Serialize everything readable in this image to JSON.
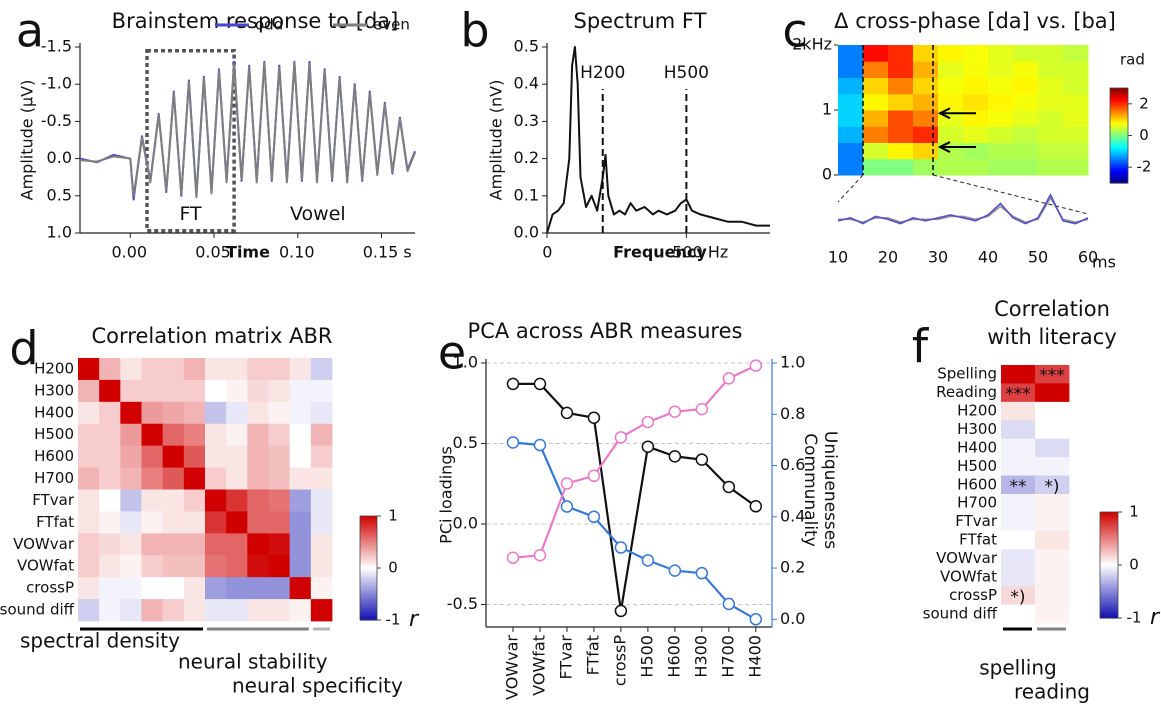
{
  "chart_data": [
    {
      "type": "line",
      "panel_label": "a",
      "title": "Brainstem response to [da]",
      "xlabel": "Time",
      "ylabel": "Amplitude (µV)",
      "x": [
        -0.03,
        -0.02,
        -0.01,
        0.0,
        0.002,
        0.007,
        0.012,
        0.017,
        0.0215,
        0.026,
        0.0305,
        0.035,
        0.0395,
        0.044,
        0.0485,
        0.053,
        0.0575,
        0.062,
        0.0665,
        0.071,
        0.0755,
        0.08,
        0.0845,
        0.089,
        0.0935,
        0.098,
        0.1025,
        0.107,
        0.1115,
        0.116,
        0.1205,
        0.125,
        0.1295,
        0.134,
        0.1385,
        0.143,
        0.1475,
        0.152,
        0.1565,
        0.161,
        0.1655,
        0.17
      ],
      "series": [
        {
          "name": "odd",
          "color": "#4646cc",
          "values": [
            0.0,
            0.05,
            -0.05,
            0.0,
            0.55,
            -0.3,
            0.3,
            -0.6,
            0.45,
            -0.9,
            0.5,
            -1.05,
            0.5,
            -1.1,
            0.45,
            -1.2,
            0.3,
            -1.3,
            0.3,
            -1.25,
            0.3,
            -1.3,
            0.3,
            -1.25,
            0.3,
            -1.3,
            0.3,
            -1.3,
            0.3,
            -1.2,
            0.3,
            -1.1,
            0.3,
            -1.0,
            0.3,
            -0.9,
            0.2,
            -0.75,
            0.2,
            -0.55,
            0.15,
            -0.1
          ]
        },
        {
          "name": "even",
          "color": "#7f7f7f",
          "values": [
            0.02,
            0.04,
            -0.03,
            0.0,
            0.5,
            -0.28,
            0.32,
            -0.58,
            0.43,
            -0.88,
            0.48,
            -1.03,
            0.52,
            -1.08,
            0.47,
            -1.18,
            0.32,
            -1.27,
            0.28,
            -1.23,
            0.32,
            -1.28,
            0.28,
            -1.22,
            0.32,
            -1.28,
            0.28,
            -1.27,
            0.32,
            -1.18,
            0.28,
            -1.08,
            0.32,
            -0.98,
            0.28,
            -0.88,
            0.22,
            -0.73,
            0.18,
            -0.53,
            0.17,
            -0.08
          ]
        }
      ],
      "xlim": [
        -0.03,
        0.17
      ],
      "ylim": [
        -1.5,
        1.0
      ],
      "y_inverted": true,
      "xticks": [
        {
          "value": 0,
          "label": "0.00"
        },
        0.05,
        {
          "value": 0.1,
          "label": "0.10"
        },
        {
          "value": 0.15,
          "label": "0.15 s"
        }
      ],
      "yticks": [
        -1.5,
        {
          "value": -1,
          "label": "-1.0"
        },
        -0.5,
        {
          "value": 0,
          "label": "0.0"
        },
        0.5,
        {
          "value": 1,
          "label": "1.0"
        }
      ],
      "legend": "upper right",
      "box": {
        "x0": 0.01,
        "x1": 0.062,
        "y0": -1.45,
        "y1": 0.97
      },
      "annotations": [
        {
          "text": "FT",
          "x": 0.036,
          "y": 0.75
        },
        {
          "text": "Vowel",
          "x": 0.112,
          "y": 0.75
        }
      ]
    },
    {
      "type": "line",
      "panel_label": "b",
      "title": "Spectrum FT",
      "xlabel": "Frequency",
      "ylabel": "Amplitude (nV)",
      "x": [
        0,
        20,
        40,
        60,
        80,
        90,
        100,
        110,
        120,
        140,
        160,
        180,
        200,
        210,
        220,
        240,
        260,
        280,
        300,
        320,
        350,
        380,
        400,
        430,
        460,
        480,
        500,
        520,
        550,
        600,
        650,
        700,
        750,
        800
      ],
      "series": [
        {
          "name": "spectrum",
          "color": "#111111",
          "values": [
            0,
            0.05,
            0.06,
            0.08,
            0.2,
            0.45,
            0.5,
            0.4,
            0.15,
            0.07,
            0.1,
            0.06,
            0.15,
            0.21,
            0.1,
            0.05,
            0.06,
            0.05,
            0.08,
            0.06,
            0.07,
            0.05,
            0.06,
            0.05,
            0.06,
            0.08,
            0.09,
            0.06,
            0.05,
            0.04,
            0.03,
            0.03,
            0.02,
            0.02
          ]
        }
      ],
      "xlim": [
        0,
        800
      ],
      "ylim": [
        0,
        0.5
      ],
      "xticks": [
        0,
        {
          "value": 500,
          "label": "500 Hz"
        }
      ],
      "yticks": [
        {
          "value": 0,
          "label": "0.0"
        },
        0.1,
        0.2,
        0.3,
        0.4,
        0.5
      ],
      "vlines": [
        {
          "x": 200,
          "label": "H200"
        },
        {
          "x": 500,
          "label": "H500"
        }
      ]
    },
    {
      "type": "heatmap",
      "panel_label": "c",
      "title": "Δ cross-phase [da] vs. [ba]",
      "xlabel": "ms",
      "colormap": "jet",
      "x": [
        12.5,
        17.5,
        22.5,
        27.5,
        32.5,
        37.5,
        42.5,
        47.5,
        52.5,
        57.5
      ],
      "y": [
        0.125,
        0.375,
        0.625,
        0.875,
        1.125,
        1.375,
        1.625,
        1.875
      ],
      "z": [
        [
          -1.5,
          0,
          0,
          0.2,
          0.3,
          0.3,
          0.2,
          0.2,
          0.3,
          0.3
        ],
        [
          -1.5,
          0.5,
          0.8,
          1.0,
          0.3,
          0.2,
          0.3,
          0.3,
          0.4,
          0.4
        ],
        [
          -1.2,
          1.5,
          1.8,
          2.0,
          0.5,
          0.6,
          0.5,
          0.4,
          0.5,
          0.5
        ],
        [
          -1.0,
          1.2,
          1.8,
          1.5,
          0.6,
          0.8,
          0.7,
          0.6,
          0.5,
          0.6
        ],
        [
          -1.0,
          0.8,
          1.0,
          1.2,
          0.8,
          0.9,
          0.8,
          0.7,
          0.6,
          0.6
        ],
        [
          -1.2,
          1.0,
          1.5,
          1.0,
          0.7,
          0.8,
          0.7,
          0.8,
          0.6,
          0.5
        ],
        [
          -1.5,
          1.5,
          2.0,
          1.2,
          0.6,
          0.7,
          0.6,
          0.7,
          0.5,
          0.5
        ],
        [
          -1.5,
          2.2,
          2.0,
          1.0,
          0.8,
          0.7,
          0.6,
          0.5,
          0.5,
          0.4
        ]
      ],
      "xlim": [
        10,
        60
      ],
      "ylim": [
        0,
        2
      ],
      "xticks": [
        10,
        20,
        30,
        40,
        50,
        60
      ],
      "yticks": [
        0,
        1,
        {
          "value": 2,
          "label": "2kHz"
        }
      ],
      "vlines": [
        15,
        29
      ],
      "arrows": [
        {
          "x": 30,
          "y": 0.95
        },
        {
          "x": 30,
          "y": 0.43
        }
      ],
      "clim": [
        -3,
        3
      ],
      "cticks": [
        2,
        0,
        -2
      ],
      "clabel": "rad",
      "inset": {
        "x": [
          10,
          12.5,
          15,
          17.5,
          20,
          22.5,
          25,
          27.5,
          30,
          32.5,
          35,
          37.5,
          40,
          42.5,
          45,
          47.5,
          50,
          52.5,
          55,
          57.5,
          60
        ],
        "ylim": [
          -0.6,
          1.0
        ],
        "series": [
          {
            "color": "#5050c8",
            "values": [
              0.0,
              0.1,
              -0.1,
              0.15,
              0.05,
              -0.1,
              0.1,
              0.0,
              0.1,
              0.2,
              0.1,
              0.0,
              0.2,
              0.6,
              0.1,
              -0.1,
              0.1,
              0.9,
              0.0,
              -0.1,
              0.1
            ]
          },
          {
            "color": "#909090",
            "values": [
              0.05,
              0.05,
              -0.05,
              0.1,
              0.1,
              -0.05,
              0.05,
              0.05,
              0.05,
              0.15,
              0.15,
              0.05,
              0.15,
              0.5,
              0.15,
              -0.05,
              0.05,
              0.8,
              0.05,
              -0.05,
              0.05
            ]
          }
        ]
      }
    },
    {
      "type": "heatmap",
      "panel_label": "d",
      "title": "Correlation matrix ABR",
      "colormap": "bwr",
      "categories": [
        "H200",
        "H300",
        "H400",
        "H500",
        "H600",
        "H700",
        "FTvar",
        "FTfat",
        "VOWvar",
        "VOWfat",
        "crossP",
        "sound diff"
      ],
      "z": [
        [
          1,
          0.3,
          0.1,
          0.2,
          0.2,
          0.3,
          0.1,
          0.1,
          0.2,
          0.2,
          0.1,
          -0.2
        ],
        [
          0.3,
          1,
          0.2,
          0.2,
          0.2,
          0.2,
          0,
          0.05,
          0.15,
          0.1,
          -0.05,
          -0.05
        ],
        [
          0.1,
          0.2,
          1,
          0.4,
          0.35,
          0.3,
          -0.25,
          -0.1,
          0.1,
          0.05,
          -0.05,
          -0.1
        ],
        [
          0.2,
          0.2,
          0.4,
          1,
          0.6,
          0.5,
          0.1,
          0.05,
          0.3,
          0.2,
          0,
          0.3
        ],
        [
          0.2,
          0.2,
          0.35,
          0.6,
          1,
          0.65,
          0.1,
          0.1,
          0.3,
          0.25,
          0,
          0.2
        ],
        [
          0.3,
          0.2,
          0.3,
          0.5,
          0.65,
          1,
          0.2,
          0.1,
          0.3,
          0.25,
          0.1,
          0.1
        ],
        [
          0.1,
          0,
          -0.25,
          0.1,
          0.1,
          0.2,
          1,
          0.8,
          0.6,
          0.55,
          -0.4,
          -0.1
        ],
        [
          0.1,
          0.05,
          -0.1,
          0.05,
          0.1,
          0.1,
          0.8,
          1,
          0.6,
          0.6,
          -0.45,
          -0.1
        ],
        [
          0.2,
          0.15,
          0.1,
          0.3,
          0.3,
          0.3,
          0.6,
          0.6,
          1,
          0.95,
          -0.45,
          0.1
        ],
        [
          0.2,
          0.1,
          0.05,
          0.2,
          0.25,
          0.25,
          0.55,
          0.6,
          0.95,
          1,
          -0.45,
          0.1
        ],
        [
          0.1,
          -0.05,
          -0.05,
          0,
          0,
          0.1,
          -0.4,
          -0.45,
          -0.45,
          -0.45,
          1,
          0.05
        ],
        [
          -0.2,
          -0.05,
          -0.1,
          0.3,
          0.2,
          0.1,
          -0.1,
          -0.1,
          0.1,
          0.1,
          0.05,
          1
        ]
      ],
      "groups": [
        {
          "label": "spectral density",
          "from": "H200",
          "to": "H700",
          "color": "#000000"
        },
        {
          "label": "neural stability",
          "from": "FTvar",
          "to": "crossP",
          "color": "#808080"
        },
        {
          "label": "neural specificity",
          "from": "sound diff",
          "to": "sound diff",
          "color": "#b4b4b4"
        }
      ],
      "clim": [
        -1,
        1
      ],
      "cticks": [
        1,
        0,
        -1
      ],
      "clabel": "r"
    },
    {
      "type": "line",
      "panel_label": "e",
      "title": "PCA across ABR measures",
      "ylabel": "PCi loadings",
      "categories": [
        "VOWvar",
        "VOWfat",
        "FTvar",
        "FTfat",
        "crossP",
        "H500",
        "H600",
        "H300",
        "H700",
        "H400"
      ],
      "series": [
        {
          "name": "PCi loadings",
          "color": "#111111",
          "values": [
            0.87,
            0.87,
            0.69,
            0.66,
            -0.54,
            0.48,
            0.42,
            0.4,
            0.23,
            0.11
          ]
        },
        {
          "name": "Communality",
          "color": "#3a78d8",
          "axis": "y2",
          "values": [
            0.69,
            0.68,
            0.44,
            0.4,
            0.28,
            0.23,
            0.19,
            0.18,
            0.06,
            0.0
          ]
        },
        {
          "name": "Uniquenesses",
          "color": "#e87ac8",
          "axis": "y2",
          "values": [
            0.24,
            0.25,
            0.53,
            0.56,
            0.71,
            0.77,
            0.81,
            0.82,
            0.94,
            0.99
          ]
        }
      ],
      "ylim": [
        -0.64,
        1.0
      ],
      "y2lim": [
        -0.03,
        1.0
      ],
      "yticks": [
        -0.5,
        {
          "value": 0,
          "label": "0.0"
        },
        0.5,
        {
          "value": 1,
          "label": "1.0"
        }
      ],
      "y2ticks": [
        {
          "value": 0,
          "label": "0.0"
        },
        0.2,
        0.4,
        0.6,
        0.8,
        {
          "value": 1,
          "label": "1.0"
        }
      ],
      "grid": true,
      "markers": true,
      "legend": "right axis"
    },
    {
      "type": "heatmap",
      "panel_label": "f",
      "title": [
        "Correlation",
        "with literacy"
      ],
      "colormap": "bwr",
      "categories": [
        "Spelling",
        "Reading",
        "H200",
        "H300",
        "H400",
        "H500",
        "H600",
        "H700",
        "FTvar",
        "FTfat",
        "VOWvar",
        "VOWfat",
        "crossP",
        "sound diff"
      ],
      "columns": [
        {
          "name": "spelling",
          "color": "#000000"
        },
        {
          "name": "reading",
          "color": "#808080"
        }
      ],
      "z": [
        [
          1,
          0.75
        ],
        [
          0.75,
          1
        ],
        [
          0.1,
          0
        ],
        [
          -0.15,
          0
        ],
        [
          -0.05,
          -0.15
        ],
        [
          -0.05,
          -0.05
        ],
        [
          -0.3,
          -0.2
        ],
        [
          -0.05,
          0.05
        ],
        [
          -0.05,
          0.05
        ],
        [
          0,
          0.1
        ],
        [
          -0.1,
          0.05
        ],
        [
          -0.1,
          0.05
        ],
        [
          0.15,
          0.05
        ],
        [
          0,
          0.05
        ]
      ],
      "cell_labels": [
        [
          null,
          "***"
        ],
        [
          "***",
          null
        ],
        [
          null,
          null
        ],
        [
          null,
          null
        ],
        [
          null,
          null
        ],
        [
          null,
          null
        ],
        [
          "**",
          "*)"
        ],
        [
          null,
          null
        ],
        [
          null,
          null
        ],
        [
          null,
          null
        ],
        [
          null,
          null
        ],
        [
          null,
          null
        ],
        [
          "*)",
          null
        ],
        [
          null,
          null
        ]
      ],
      "clim": [
        -1,
        1
      ],
      "cticks": [
        1,
        0,
        -1
      ],
      "clabel": "r"
    }
  ]
}
